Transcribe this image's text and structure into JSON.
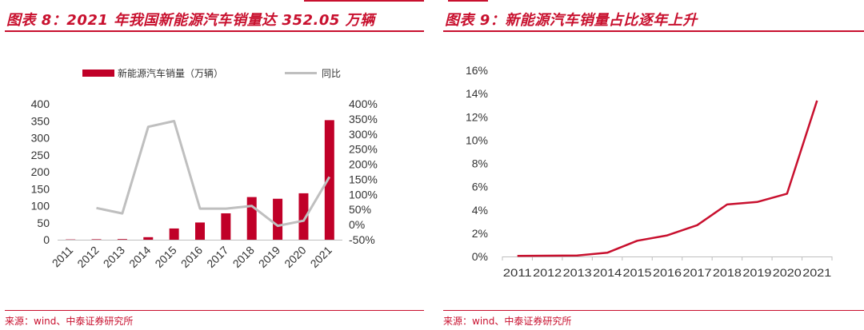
{
  "colors": {
    "accent": "#c8102e",
    "bar": "#c00028",
    "line_gray": "#bfbfbf",
    "axis": "#bfbfbf"
  },
  "left": {
    "title": "图表 8：2021 年我国新能源汽车销量达 352.05 万辆",
    "source": "来源：wind、中泰证券研究所"
  },
  "right": {
    "title": "图表 9：新能源汽车销量占比逐年上升",
    "source": "来源：wind、中泰证券研究所"
  },
  "chart_data": [
    {
      "type": "bar",
      "categories": [
        "2011",
        "2012",
        "2013",
        "2014",
        "2015",
        "2016",
        "2017",
        "2018",
        "2019",
        "2020",
        "2021"
      ],
      "series": [
        {
          "name": "新能源汽车销量（万辆）",
          "type": "bar",
          "axis": "left",
          "values": [
            0.8,
            1.3,
            1.8,
            7.5,
            33.1,
            50.7,
            77.7,
            125.6,
            120.6,
            136.7,
            352.05
          ]
        },
        {
          "name": "同比",
          "type": "line",
          "axis": "right",
          "values": [
            null,
            55,
            37,
            324,
            343,
            53,
            53,
            62,
            -4,
            13,
            158
          ]
        }
      ],
      "y_left": {
        "min": 0,
        "max": 400,
        "ticks": [
          0,
          50,
          100,
          150,
          200,
          250,
          300,
          350,
          400
        ]
      },
      "y_right": {
        "min": -50,
        "max": 400,
        "step": 50,
        "ticks": [
          "-50%",
          "0%",
          "50%",
          "100%",
          "150%",
          "200%",
          "250%",
          "300%",
          "350%",
          "400%"
        ]
      },
      "legend_position": "top",
      "grid": false
    },
    {
      "type": "line",
      "categories": [
        "2011",
        "2012",
        "2013",
        "2014",
        "2015",
        "2016",
        "2017",
        "2018",
        "2019",
        "2020",
        "2021"
      ],
      "series": [
        {
          "values": [
            0.05,
            0.07,
            0.08,
            0.32,
            1.35,
            1.81,
            2.69,
            4.47,
            4.68,
            5.4,
            13.4
          ]
        }
      ],
      "ylim": [
        0,
        16
      ],
      "y_ticks": [
        "0%",
        "2%",
        "4%",
        "6%",
        "8%",
        "10%",
        "12%",
        "14%",
        "16%"
      ],
      "grid": false
    }
  ]
}
